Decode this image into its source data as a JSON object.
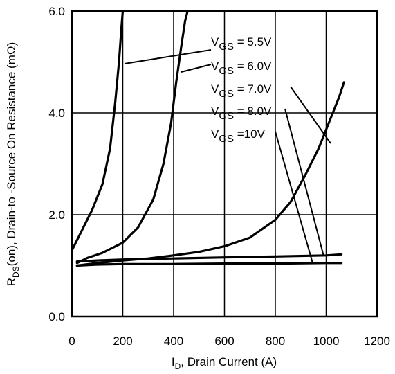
{
  "chart_data": {
    "type": "line",
    "xlabel": {
      "main": "I",
      "sub": "D",
      "rest": ", Drain Current (A)"
    },
    "ylabel": {
      "main": "R",
      "sub": "DS",
      "rest": "(on),  Drain-to -Source On Resistance (mΩ)"
    },
    "xlim": [
      0,
      1200
    ],
    "ylim": [
      0,
      6
    ],
    "x_ticks": [
      "0",
      "200",
      "400",
      "600",
      "800",
      "1000",
      "1200"
    ],
    "y_ticks": [
      "0.0",
      "2.0",
      "4.0",
      "6.0"
    ],
    "grid": true,
    "series": [
      {
        "name": "VGS = 5.5V",
        "label": {
          "base": "V",
          "sub": "GS",
          "value": " = 5.5V"
        },
        "x": [
          0,
          40,
          80,
          120,
          150,
          170,
          185,
          195,
          200
        ],
        "y": [
          1.3,
          1.7,
          2.1,
          2.6,
          3.3,
          4.2,
          5.0,
          5.7,
          6.0
        ]
      },
      {
        "name": "VGS = 6.0V",
        "label": {
          "base": "V",
          "sub": "GS",
          "value": " = 6.0V"
        },
        "x": [
          20,
          60,
          120,
          200,
          260,
          320,
          360,
          390,
          410,
          430,
          445,
          455
        ],
        "y": [
          1.05,
          1.15,
          1.25,
          1.45,
          1.75,
          2.3,
          3.0,
          3.8,
          4.6,
          5.3,
          5.8,
          6.0
        ]
      },
      {
        "name": "VGS = 7.0V",
        "label": {
          "base": "V",
          "sub": "GS",
          "value": " = 7.0V"
        },
        "x": [
          20,
          100,
          200,
          300,
          400,
          500,
          600,
          700,
          800,
          860,
          920,
          970,
          1010,
          1050,
          1070
        ],
        "y": [
          1.0,
          1.05,
          1.1,
          1.14,
          1.2,
          1.27,
          1.38,
          1.55,
          1.9,
          2.25,
          2.8,
          3.3,
          3.8,
          4.3,
          4.6
        ]
      },
      {
        "name": "VGS = 8.0V",
        "label": {
          "base": "V",
          "sub": "GS",
          "value": " = 8.0V"
        },
        "x": [
          20,
          100,
          200,
          400,
          600,
          800,
          1000,
          1060
        ],
        "y": [
          1.08,
          1.1,
          1.12,
          1.14,
          1.16,
          1.18,
          1.2,
          1.22
        ]
      },
      {
        "name": "VGS =10V",
        "label": {
          "base": "V",
          "sub": "GS",
          "value": " =10V"
        },
        "x": [
          20,
          100,
          200,
          400,
          600,
          800,
          1000,
          1060
        ],
        "y": [
          1.0,
          1.02,
          1.03,
          1.03,
          1.04,
          1.04,
          1.05,
          1.05
        ]
      }
    ]
  }
}
